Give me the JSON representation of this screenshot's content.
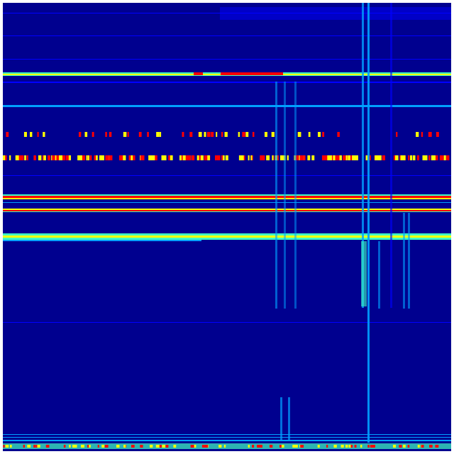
{
  "colormap": {
    "background": "#00008f",
    "low": "#0000ff",
    "mid_low": "#00a0ff",
    "mid": "#40ffc0",
    "mid_high": "#ffff00",
    "high": "#ff0000"
  }
}
